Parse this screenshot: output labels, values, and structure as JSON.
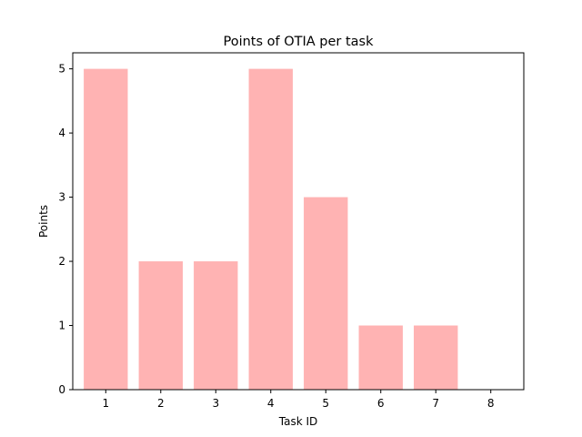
{
  "chart_data": {
    "type": "bar",
    "title": "Points of OTIA per task",
    "xlabel": "Task ID",
    "ylabel": "Points",
    "categories": [
      "1",
      "2",
      "3",
      "4",
      "5",
      "6",
      "7",
      "8"
    ],
    "values": [
      5,
      2,
      2,
      5,
      3,
      1,
      1,
      0
    ],
    "ylim": [
      0,
      5.25
    ],
    "yticks": [
      "0",
      "1",
      "2",
      "3",
      "4",
      "5"
    ],
    "bar_color": "#ffb3b3",
    "grid": false,
    "legend": "none"
  }
}
